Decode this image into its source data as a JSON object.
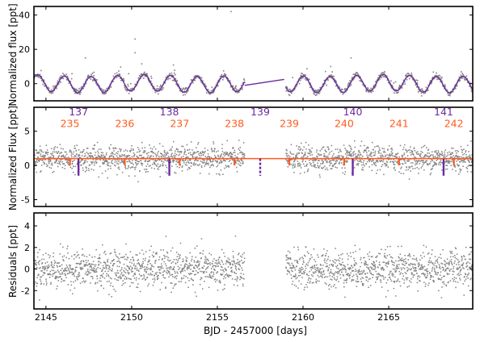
{
  "chart_data": [
    {
      "type": "scatter",
      "panel": "top",
      "ylabel": "Normalized flux [ppt]",
      "xlim": [
        2144.3,
        2169.9
      ],
      "ylim": [
        -10,
        45
      ],
      "yticks": [
        0,
        20,
        40
      ],
      "series": [
        {
          "kind": "scatter",
          "color": "#808080",
          "segments": [
            [
              2144.3,
              2156.6
            ],
            [
              2159.0,
              2169.9
            ]
          ],
          "description_points": {
            "baseline": 0,
            "amplitude": 5,
            "period_days": 1.55
          },
          "outliers": [
            [
              2150.2,
              26
            ],
            [
              2150.2,
              18
            ],
            [
              2155.8,
              42
            ],
            [
              2162.8,
              15
            ],
            [
              2147.3,
              15
            ]
          ]
        },
        {
          "kind": "line",
          "color": "#6a2c9f",
          "segments": [
            [
              2144.3,
              2156.6
            ],
            [
              2159.0,
              2169.9
            ]
          ],
          "gap_bridge": [
            [
              2156.6,
              -1.0
            ],
            [
              2158.9,
              2.5
            ]
          ]
        }
      ]
    },
    {
      "type": "scatter",
      "panel": "middle",
      "ylabel": "Normalized Flux [ppt]",
      "xlim": [
        2144.3,
        2169.9
      ],
      "ylim": [
        -6,
        8.5
      ],
      "yticks": [
        -5,
        0,
        5
      ],
      "baseline": 1.0,
      "epochs_b": [
        {
          "label": "137",
          "x": 2146.9
        },
        {
          "label": "138",
          "x": 2152.2
        },
        {
          "label": "139",
          "x": 2157.5
        },
        {
          "label": "140",
          "x": 2162.9
        },
        {
          "label": "141",
          "x": 2168.2
        }
      ],
      "epochs_c": [
        {
          "label": "235",
          "x": 2146.4
        },
        {
          "label": "236",
          "x": 2149.6
        },
        {
          "label": "237",
          "x": 2152.8
        },
        {
          "label": "238",
          "x": 2156.0
        },
        {
          "label": "239",
          "x": 2159.2
        },
        {
          "label": "240",
          "x": 2162.4
        },
        {
          "label": "241",
          "x": 2165.6
        },
        {
          "label": "242",
          "x": 2168.8
        }
      ],
      "transit_depth_b": 2.5,
      "transit_depth_c": 1.0,
      "color_b": "#6a2c9f",
      "color_c": "#ff5a1f",
      "scatter_color": "#808080"
    },
    {
      "type": "scatter",
      "panel": "bottom",
      "ylabel": "Residuals [ppt]",
      "xlabel": "BJD - 2457000 [days]",
      "xlim": [
        2144.3,
        2169.9
      ],
      "ylim": [
        -3.7,
        5.2
      ],
      "yticks": [
        -2,
        0,
        2,
        4
      ],
      "xticks": [
        2145,
        2150,
        2155,
        2160,
        2165
      ],
      "segments": [
        [
          2144.3,
          2156.6
        ],
        [
          2159.0,
          2169.9
        ]
      ],
      "scatter_color": "#808080"
    }
  ],
  "labels": {
    "top_ylabel": "Normalized flux [ppt]",
    "mid_ylabel": "Normalized Flux [ppt]",
    "bot_ylabel": "Residuals [ppt]",
    "xlabel": "BJD - 2457000 [days]"
  }
}
